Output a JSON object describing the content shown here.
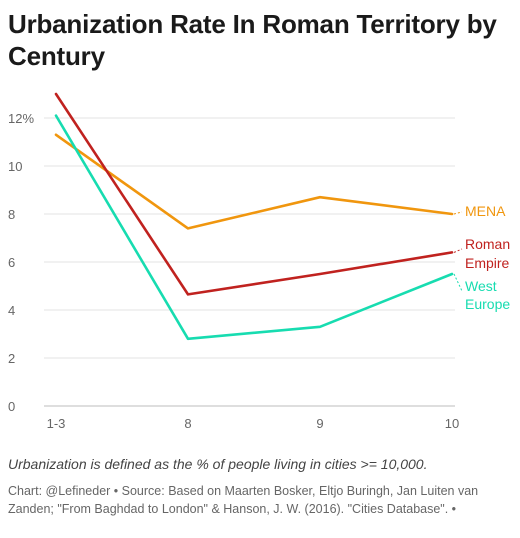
{
  "title": "Urbanization Rate In Roman Territory by Century",
  "note": "Urbanization is defined as the % of people living in cities >= 10,000.",
  "credit": "Chart: @Lefineder • Source: Based on Maarten Bosker, Eltjo Buringh, Jan Luiten van Zanden; \"From Baghdad to London\" & Hanson, J. W. (2016). \"Cities Database\". •",
  "chart_data": {
    "type": "line",
    "categories": [
      "1-3",
      "8",
      "9",
      "10"
    ],
    "y_ticks": [
      "0",
      "2",
      "4",
      "6",
      "8",
      "10",
      "12%"
    ],
    "ylim": [
      0,
      12
    ],
    "grid": true,
    "legend_placement": "end-of-line labels (right)",
    "series": [
      {
        "name": "MENA",
        "color": "#f0960e",
        "values": [
          11.3,
          7.4,
          8.7,
          8.0
        ],
        "label_lines": [
          "MENA"
        ]
      },
      {
        "name": "Roman Empire",
        "color": "#c0221f",
        "values": [
          13.0,
          4.65,
          5.5,
          6.4
        ],
        "label_lines": [
          "Roman",
          "Empire"
        ]
      },
      {
        "name": "West Europe",
        "color": "#17dcb0",
        "values": [
          12.1,
          2.8,
          3.3,
          5.5
        ],
        "label_lines": [
          "West",
          "Europe"
        ]
      }
    ]
  }
}
